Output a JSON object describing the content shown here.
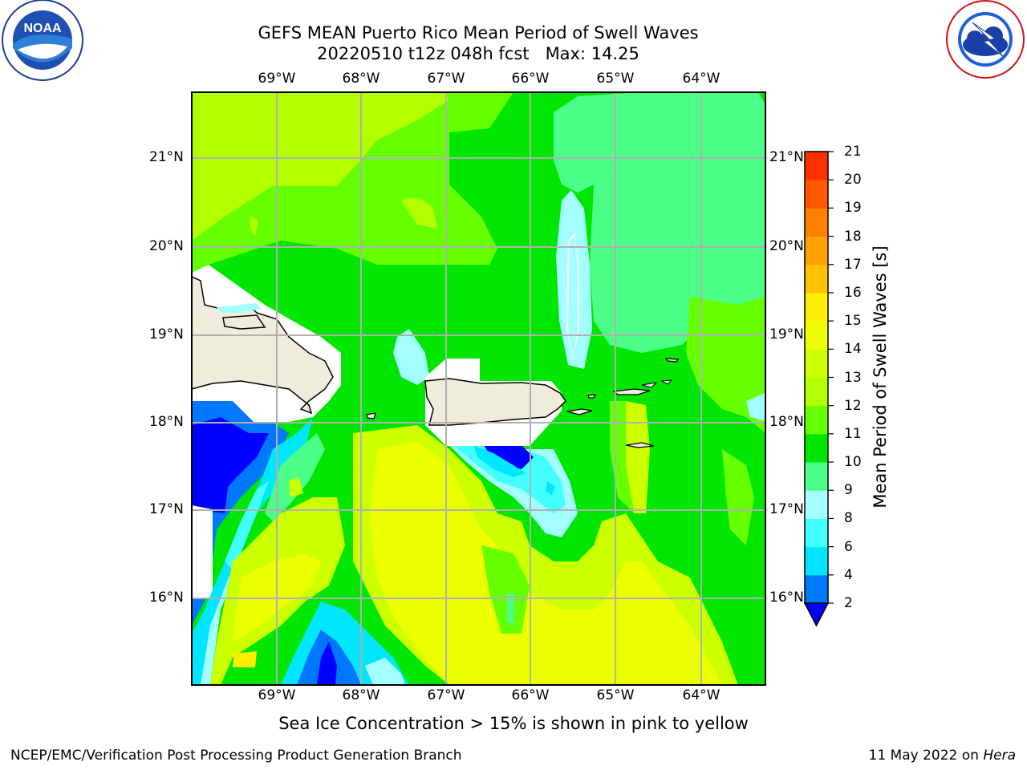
{
  "header": {
    "title_line1": "GEFS MEAN Puerto Rico Mean Period of Swell Waves",
    "title_line2": "20220510 t12z 048h fcst   Max: 14.25"
  },
  "logos": {
    "left": {
      "name": "noaa-logo",
      "text": "NOAA",
      "ring_text": "NATIONAL OCEANIC AND ATMOSPHERIC ADMINISTRATION · U.S. DEPARTMENT OF COMMERCE"
    },
    "right": {
      "name": "nws-logo",
      "ring_text": "NATIONAL WEATHER SERVICE"
    }
  },
  "map": {
    "lon_labels": [
      "69°W",
      "68°W",
      "67°W",
      "66°W",
      "65°W",
      "64°W"
    ],
    "lat_labels": [
      "21°N",
      "20°N",
      "19°N",
      "18°N",
      "17°N",
      "16°N"
    ],
    "land_color": "#efecdc",
    "grid_color": "#b0b0b0"
  },
  "colorbar": {
    "label": "Mean Period of Swell Waves [s]",
    "ticks": [
      "2",
      "4",
      "6",
      "8",
      "9",
      "10",
      "11",
      "12",
      "13",
      "14",
      "15",
      "16",
      "17",
      "18",
      "19",
      "20",
      "21"
    ],
    "colors": [
      "#0000ff",
      "#0077ff",
      "#00e6ff",
      "#44ffff",
      "#a3ffff",
      "#4dff88",
      "#00e600",
      "#66ff00",
      "#b2ff00",
      "#ccff00",
      "#ebff00",
      "#ffee00",
      "#ffc000",
      "#ffa000",
      "#ff8000",
      "#ff5a00",
      "#ff3000",
      "#ff0000"
    ]
  },
  "footer": {
    "caption": "Sea Ice Concentration > 15% is shown in pink to yellow",
    "credit": "NCEP/EMC/Verification Post Processing Product Generation Branch",
    "date": "11 May 2022 on",
    "machine": "Hera"
  }
}
